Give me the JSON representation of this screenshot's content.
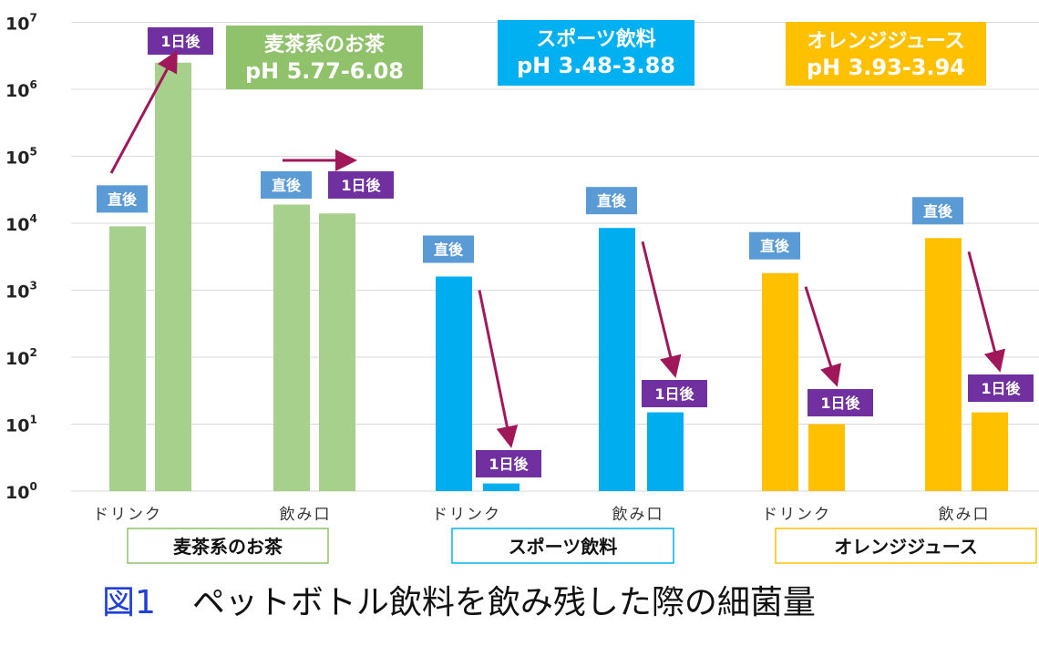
{
  "chart_data": {
    "type": "bar",
    "yscale": "log",
    "ylim": [
      1,
      10000000
    ],
    "y_ticks": [
      {
        "base": "10",
        "exp": "0"
      },
      {
        "base": "10",
        "exp": "1"
      },
      {
        "base": "10",
        "exp": "2"
      },
      {
        "base": "10",
        "exp": "3"
      },
      {
        "base": "10",
        "exp": "4"
      },
      {
        "base": "10",
        "exp": "5"
      },
      {
        "base": "10",
        "exp": "6"
      },
      {
        "base": "10",
        "exp": "7"
      }
    ],
    "grid": true,
    "labels": {
      "before": "直後",
      "after": "1日後"
    },
    "groups": [
      {
        "name": "麦茶系のお茶",
        "ph_title": "麦茶系のお茶",
        "ph_value": "pH 5.77-6.08",
        "color": "#a8d08d",
        "box_color": "#8fc26a",
        "subgroups": [
          {
            "label": "ドリンク",
            "values": [
              9000,
              2500000
            ]
          },
          {
            "label": "飲み口",
            "values": [
              19000,
              14000
            ]
          }
        ]
      },
      {
        "name": "スポーツ飲料",
        "ph_title": "スポーツ飲料",
        "ph_value": "pH 3.48-3.88",
        "color": "#00aeef",
        "box_color": "#00b0f0",
        "subgroups": [
          {
            "label": "ドリンク",
            "values": [
              1600,
              1.3
            ]
          },
          {
            "label": "飲み口",
            "values": [
              8500,
              15
            ]
          }
        ]
      },
      {
        "name": "オレンジジュース",
        "ph_title": "オレンジジュース",
        "ph_value": "pH 3.93-3.94",
        "color": "#ffc000",
        "box_color": "#ffc000",
        "subgroups": [
          {
            "label": "ドリンク",
            "values": [
              1800,
              10
            ]
          },
          {
            "label": "飲み口",
            "values": [
              6000,
              15
            ]
          }
        ]
      }
    ],
    "colors": {
      "label_before": "#5b9bd5",
      "label_after": "#7030a0",
      "arrow": "#a0185a",
      "grid": "#d9d9d9"
    }
  },
  "caption": {
    "figure": "図1",
    "text": "ペットボトル飲料を飲み残した際の細菌量"
  }
}
